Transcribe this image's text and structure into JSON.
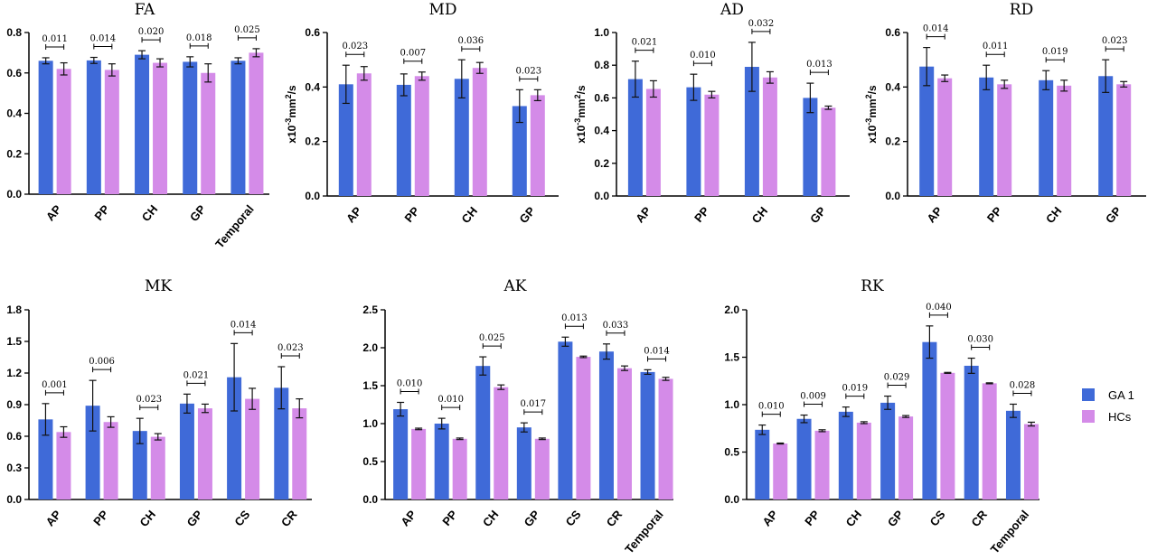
{
  "legend": {
    "series": [
      "GA 1",
      "HCs"
    ],
    "colors": [
      "#3f6ad8",
      "#d48be8"
    ]
  },
  "chart_data": [
    {
      "type": "bar",
      "title": "FA",
      "ylabel": "",
      "ylim": [
        0,
        0.8
      ],
      "yticks": [
        "0.0",
        "0.2",
        "0.4",
        "0.6",
        "0.8"
      ],
      "categories": [
        "AP",
        "PP",
        "CH",
        "GP",
        "Temporal"
      ],
      "series": [
        {
          "name": "GA 1",
          "values": [
            0.66,
            0.662,
            0.69,
            0.655,
            0.66
          ],
          "errors": [
            0.015,
            0.015,
            0.02,
            0.025,
            0.015
          ]
        },
        {
          "name": "HCs",
          "values": [
            0.62,
            0.615,
            0.65,
            0.6,
            0.7
          ],
          "errors": [
            0.03,
            0.03,
            0.02,
            0.045,
            0.02
          ]
        }
      ],
      "pvalues": [
        "0.011",
        "0.014",
        "0.020",
        "0.018",
        "0.025"
      ]
    },
    {
      "type": "bar",
      "title": "MD",
      "ylabel": "x10-3mm2/s",
      "ylim": [
        0,
        0.6
      ],
      "yticks": [
        "0.0",
        "0.2",
        "0.4",
        "0.6"
      ],
      "categories": [
        "AP",
        "PP",
        "CH",
        "GP"
      ],
      "series": [
        {
          "name": "GA 1",
          "values": [
            0.41,
            0.408,
            0.43,
            0.33
          ],
          "errors": [
            0.07,
            0.04,
            0.07,
            0.06
          ]
        },
        {
          "name": "HCs",
          "values": [
            0.45,
            0.44,
            0.47,
            0.37
          ],
          "errors": [
            0.025,
            0.015,
            0.02,
            0.02
          ]
        }
      ],
      "pvalues": [
        "0.023",
        "0.007",
        "0.036",
        "0.023"
      ]
    },
    {
      "type": "bar",
      "title": "AD",
      "ylabel": "x10-3mm2/s",
      "ylim": [
        0,
        1.0
      ],
      "yticks": [
        "0.0",
        "0.2",
        "0.4",
        "0.6",
        "0.8",
        "1.0"
      ],
      "categories": [
        "AP",
        "PP",
        "CH",
        "GP"
      ],
      "series": [
        {
          "name": "GA 1",
          "values": [
            0.715,
            0.665,
            0.79,
            0.6
          ],
          "errors": [
            0.11,
            0.08,
            0.15,
            0.09
          ]
        },
        {
          "name": "HCs",
          "values": [
            0.655,
            0.62,
            0.725,
            0.54
          ],
          "errors": [
            0.05,
            0.02,
            0.035,
            0.01
          ]
        }
      ],
      "pvalues": [
        "0.021",
        "0.010",
        "0.032",
        "0.013"
      ]
    },
    {
      "type": "bar",
      "title": "RD",
      "ylabel": "x10-3mm2/s",
      "ylim": [
        0,
        0.6
      ],
      "yticks": [
        "0.0",
        "0.2",
        "0.4",
        "0.6"
      ],
      "categories": [
        "AP",
        "PP",
        "CH",
        "GP"
      ],
      "series": [
        {
          "name": "GA 1",
          "values": [
            0.475,
            0.435,
            0.425,
            0.44
          ],
          "errors": [
            0.07,
            0.045,
            0.035,
            0.06
          ]
        },
        {
          "name": "HCs",
          "values": [
            0.432,
            0.41,
            0.405,
            0.41
          ],
          "errors": [
            0.012,
            0.015,
            0.02,
            0.01
          ]
        }
      ],
      "pvalues": [
        "0.014",
        "0.011",
        "0.019",
        "0.023"
      ]
    },
    {
      "type": "bar",
      "title": "MK",
      "ylabel": "",
      "ylim": [
        0,
        1.8
      ],
      "yticks": [
        "0.0",
        "0.3",
        "0.6",
        "0.9",
        "1.2",
        "1.5",
        "1.8"
      ],
      "categories": [
        "AP",
        "PP",
        "CH",
        "GP",
        "CS",
        "CR"
      ],
      "series": [
        {
          "name": "GA 1",
          "values": [
            0.76,
            0.89,
            0.65,
            0.91,
            1.16,
            1.06
          ],
          "errors": [
            0.15,
            0.24,
            0.12,
            0.09,
            0.32,
            0.2
          ]
        },
        {
          "name": "HCs",
          "values": [
            0.64,
            0.735,
            0.595,
            0.865,
            0.955,
            0.865
          ],
          "errors": [
            0.05,
            0.05,
            0.03,
            0.04,
            0.1,
            0.09
          ]
        }
      ],
      "pvalues": [
        "0.001",
        "0.006",
        "0.023",
        "0.021",
        "0.014",
        "0.023"
      ]
    },
    {
      "type": "bar",
      "title": "AK",
      "ylabel": "",
      "ylim": [
        0,
        2.5
      ],
      "yticks": [
        "0.0",
        "0.5",
        "1.0",
        "1.5",
        "2.0",
        "2.5"
      ],
      "categories": [
        "AP",
        "PP",
        "CH",
        "GP",
        "CS",
        "CR",
        "Temporal"
      ],
      "series": [
        {
          "name": "GA 1",
          "values": [
            1.19,
            1.0,
            1.76,
            0.95,
            2.08,
            1.95,
            1.68
          ],
          "errors": [
            0.09,
            0.07,
            0.12,
            0.06,
            0.06,
            0.1,
            0.03
          ]
        },
        {
          "name": "HCs",
          "values": [
            0.93,
            0.8,
            1.48,
            0.8,
            1.88,
            1.73,
            1.59
          ],
          "errors": [
            0.01,
            0.01,
            0.03,
            0.01,
            0.01,
            0.03,
            0.02
          ]
        }
      ],
      "pvalues": [
        "0.010",
        "0.010",
        "0.025",
        "0.017",
        "0.013",
        "0.033",
        "0.014"
      ]
    },
    {
      "type": "bar",
      "title": "RK",
      "ylabel": "",
      "ylim": [
        0,
        2.0
      ],
      "yticks": [
        "0.0",
        "0.5",
        "1.0",
        "1.5",
        "2.0"
      ],
      "categories": [
        "AP",
        "PP",
        "CH",
        "GP",
        "CS",
        "CR",
        "Temporal"
      ],
      "series": [
        {
          "name": "GA 1",
          "values": [
            0.735,
            0.85,
            0.925,
            1.02,
            1.66,
            1.41,
            0.935
          ],
          "errors": [
            0.05,
            0.04,
            0.05,
            0.07,
            0.17,
            0.08,
            0.07
          ]
        },
        {
          "name": "HCs",
          "values": [
            0.59,
            0.725,
            0.81,
            0.875,
            1.335,
            1.225,
            0.795
          ],
          "errors": [
            0.005,
            0.01,
            0.01,
            0.01,
            0.005,
            0.005,
            0.02
          ]
        }
      ],
      "pvalues": [
        "0.010",
        "0.009",
        "0.019",
        "0.029",
        "0.040",
        "0.030",
        "0.028"
      ]
    }
  ]
}
